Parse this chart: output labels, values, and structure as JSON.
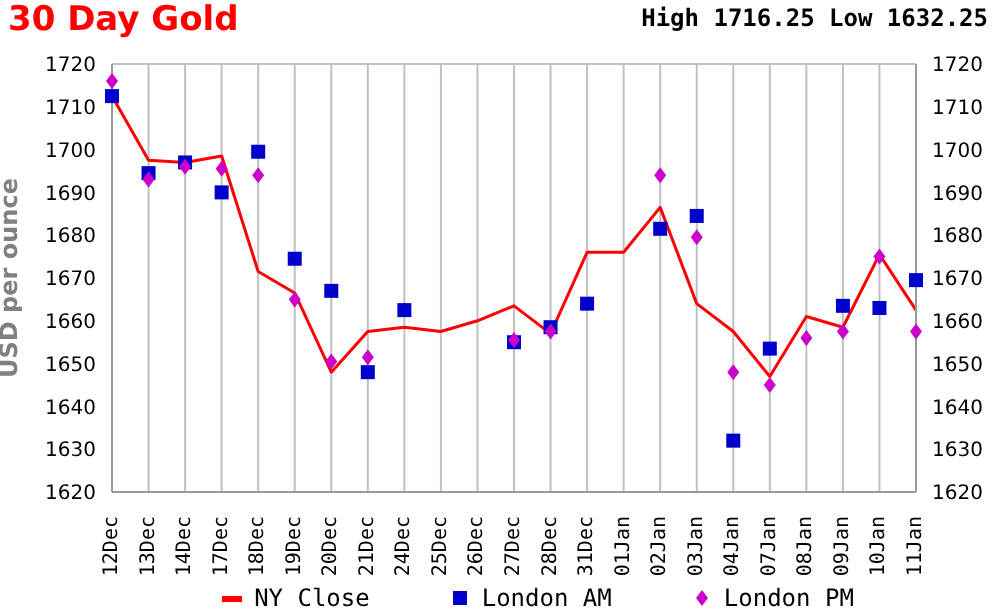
{
  "chart_data": {
    "type": "line",
    "title": "30 Day Gold",
    "subtitle": "High 1716.25 Low 1632.25",
    "ylabel": "USD per ounce",
    "categories": [
      "12Dec",
      "13Dec",
      "14Dec",
      "17Dec",
      "18Dec",
      "19Dec",
      "20Dec",
      "21Dec",
      "24Dec",
      "25Dec",
      "26Dec",
      "27Dec",
      "28Dec",
      "31Dec",
      "01Jan",
      "02Jan",
      "03Jan",
      "04Jan",
      "07Jan",
      "08Jan",
      "09Jan",
      "10Jan",
      "11Jan"
    ],
    "series": [
      {
        "name": "NY Close",
        "color": "#ff0000",
        "marker": "none",
        "values": [
          1712.5,
          1697.5,
          1697,
          1698.5,
          1671.5,
          1666.5,
          1648,
          1657.5,
          1658.5,
          1657.5,
          1660,
          1663.5,
          1657,
          1676,
          1676,
          1686.5,
          1664,
          1657.5,
          1647,
          1661,
          1658.5,
          1675.5,
          1662.5
        ]
      },
      {
        "name": "London AM",
        "type": "scatter",
        "color": "#0000cc",
        "marker": "square",
        "values": [
          1712.5,
          1694.5,
          1697,
          1690,
          1699.5,
          1674.5,
          1667,
          1648,
          1662.5,
          null,
          null,
          1655,
          1658.5,
          1664,
          null,
          1681.5,
          1684.5,
          1632,
          1653.5,
          null,
          1663.5,
          1663,
          1669.5
        ]
      },
      {
        "name": "London PM",
        "type": "scatter",
        "color": "#cc00cc",
        "marker": "diamond",
        "values": [
          1716,
          1693,
          1696,
          1695.5,
          1694,
          1665,
          1650.5,
          1651.5,
          null,
          null,
          null,
          1655.5,
          1657.5,
          null,
          null,
          1694,
          1679.5,
          1648,
          1645,
          1656,
          1657.5,
          1675,
          1657.5
        ]
      }
    ],
    "ylim": [
      1620,
      1720
    ],
    "yticks": [
      1620,
      1630,
      1640,
      1650,
      1660,
      1670,
      1680,
      1690,
      1700,
      1710,
      1720
    ],
    "y2lim": [
      1620,
      1720
    ],
    "y2ticks": [
      1620,
      1630,
      1640,
      1650,
      1660,
      1670,
      1680,
      1690,
      1700,
      1710,
      1720
    ],
    "grid": true,
    "legend": "bottom"
  }
}
